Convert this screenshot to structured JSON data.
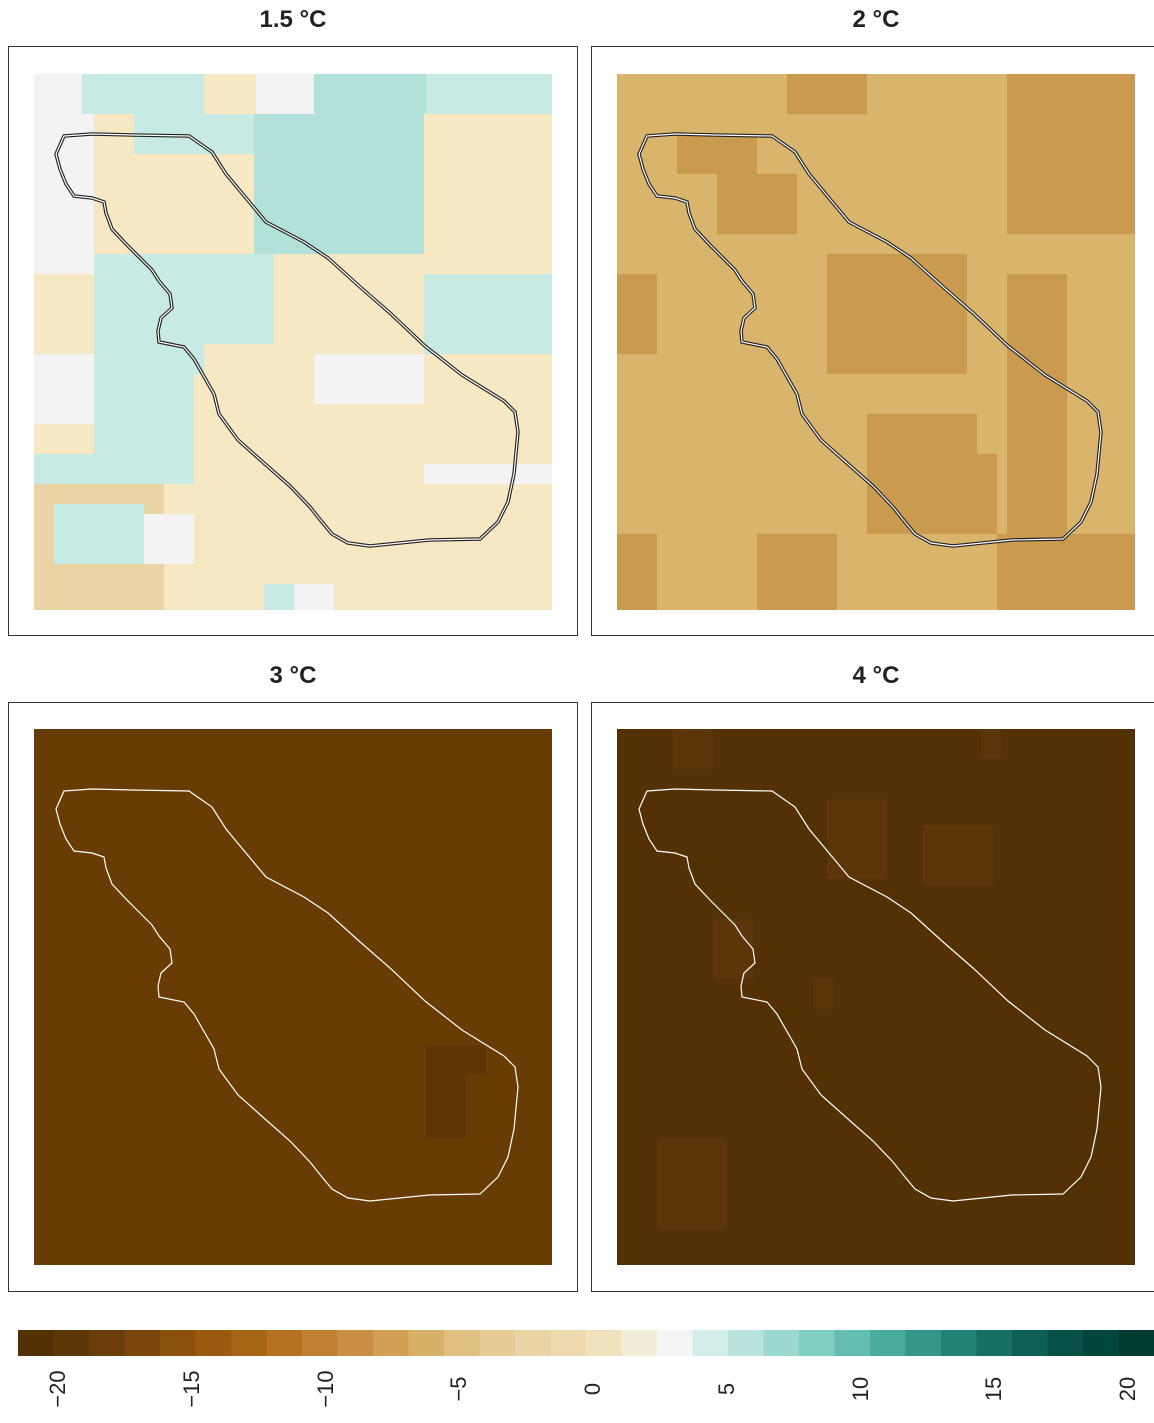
{
  "panels": [
    {
      "title": "1.5 °C"
    },
    {
      "title": "2 °C"
    },
    {
      "title": "3 °C"
    },
    {
      "title": "4 °C"
    }
  ],
  "legend": {
    "ticks": [
      "−20",
      "−15",
      "−10",
      "−5",
      "0",
      "5",
      "10",
      "15",
      "20"
    ],
    "colors": [
      "#543005",
      "#5e3708",
      "#6b3d09",
      "#7a460b",
      "#8a500d",
      "#9a5a10",
      "#a66514",
      "#b57121",
      "#c18033",
      "#c98f45",
      "#d1a055",
      "#d8b06a",
      "#dfbe80",
      "#e6cb95",
      "#ead3a4",
      "#eedaaf",
      "#f1e2bf",
      "#f3ecd8",
      "#f5f5f5",
      "#d3eeea",
      "#b8e3dd",
      "#9cd8cf",
      "#80cdc1",
      "#65bcb0",
      "#4aab9f",
      "#36968a",
      "#238276",
      "#186f64",
      "#0e5f55",
      "#065047",
      "#01463c",
      "#003c30"
    ]
  },
  "colors": {
    "teal_light": "#c7eae5",
    "teal_mid": "#b2e1da",
    "neutral": "#f3f3f3",
    "tan_light": "#f6e8c3",
    "tan_mid": "#ead3a4",
    "warm_2c": "#d8b46c",
    "warm_2c_dark": "#c99a4f",
    "brown_3c": "#693c06",
    "brown_3c_dark": "#5f3605",
    "brown_4c": "#543005",
    "brown_4c_light": "#5c3508"
  }
}
